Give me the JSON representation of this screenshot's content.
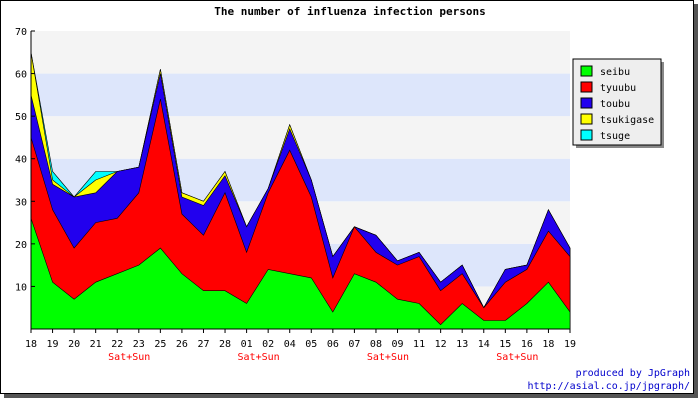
{
  "chart_data": {
    "type": "area",
    "stacked": true,
    "title": "The number of influenza infection persons",
    "categories": [
      "18",
      "19",
      "20",
      "21",
      "22",
      "23",
      "25",
      "26",
      "27",
      "28",
      "01",
      "02",
      "04",
      "05",
      "06",
      "07",
      "08",
      "09",
      "11",
      "12",
      "13",
      "14",
      "15",
      "16",
      "18",
      "19"
    ],
    "weekend_labels": [
      {
        "category_index": 4,
        "text": "Sat+Sun"
      },
      {
        "category_index": 10,
        "text": "Sat+Sun"
      },
      {
        "category_index": 16,
        "text": "Sat+Sun"
      },
      {
        "category_index": 22,
        "text": "Sat+Sun"
      }
    ],
    "ylim": [
      0,
      70
    ],
    "yticks": [
      10,
      20,
      30,
      40,
      50,
      60,
      70
    ],
    "series": [
      {
        "name": "seibu",
        "color": "#00ff00",
        "values": [
          26,
          11,
          7,
          11,
          13,
          15,
          19,
          13,
          9,
          9,
          6,
          14,
          13,
          12,
          4,
          13,
          11,
          7,
          6,
          1,
          6,
          2,
          2,
          6,
          11,
          4
        ]
      },
      {
        "name": "tyuubu",
        "color": "#ff0000",
        "values": [
          19,
          17,
          12,
          14,
          13,
          17,
          35,
          14,
          13,
          23,
          12,
          18,
          29,
          19,
          8,
          11,
          7,
          8,
          11,
          8,
          7,
          3,
          9,
          8,
          12,
          13
        ]
      },
      {
        "name": "toubu",
        "color": "#2200ee",
        "values": [
          10,
          6,
          12,
          7,
          11,
          6,
          6,
          4,
          7,
          4,
          6,
          1,
          5,
          4,
          5,
          0,
          4,
          1,
          1,
          2,
          2,
          0,
          3,
          1,
          5,
          2
        ]
      },
      {
        "name": "tsukigase",
        "color": "#ffff00",
        "values": [
          10,
          1,
          0,
          3,
          0,
          0,
          1,
          1,
          1,
          1,
          0,
          0,
          1,
          0,
          0,
          0,
          0,
          0,
          0,
          0,
          0,
          0,
          0,
          0,
          0,
          0
        ]
      },
      {
        "name": "tsuge",
        "color": "#00ffff",
        "values": [
          0,
          2,
          0,
          2,
          0,
          0,
          0,
          0,
          0,
          0,
          0,
          0,
          0,
          0,
          0,
          0,
          0,
          0,
          0,
          0,
          0,
          0,
          0,
          0,
          0,
          0
        ]
      }
    ],
    "grid": true,
    "band_colors": [
      "#f4f4f4",
      "#dde6fb"
    ],
    "legend_position": "top-right"
  },
  "credits": {
    "line1": "produced by JpGraph",
    "line2": "http://asial.co.jp/jpgraph/"
  },
  "colors": {
    "weekend_label": "#ff0000",
    "credits": "#0000cc"
  }
}
